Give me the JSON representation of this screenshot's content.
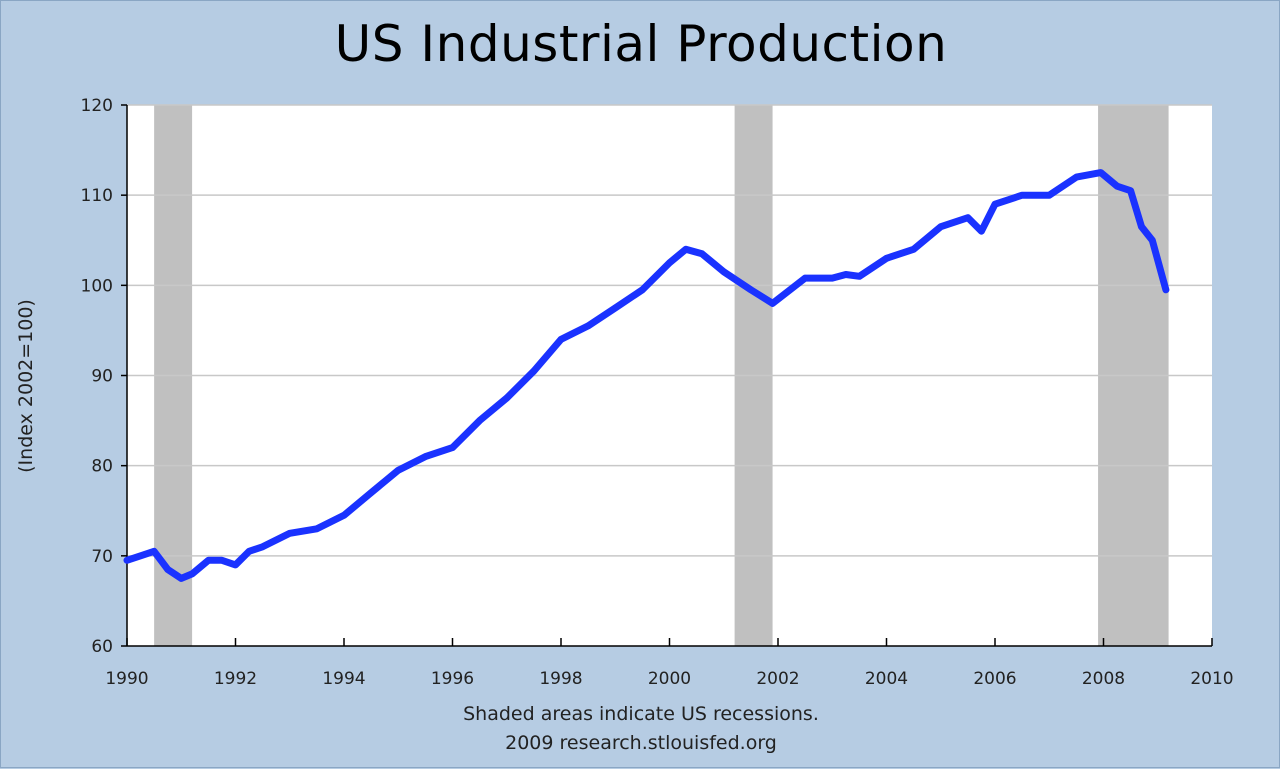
{
  "chart_data": {
    "type": "line",
    "title": "US Industrial Production",
    "ylabel": "(Index 2002=100)",
    "xlabel": "",
    "xlim": [
      1990,
      2010
    ],
    "ylim": [
      60,
      120
    ],
    "x_ticks": [
      "1990",
      "1992",
      "1994",
      "1996",
      "1998",
      "2000",
      "2002",
      "2004",
      "2006",
      "2008",
      "2010"
    ],
    "y_ticks": [
      "60",
      "70",
      "80",
      "90",
      "100",
      "110",
      "120"
    ],
    "grid": true,
    "line_color": "#1a32ff",
    "recession_color": "#c0c0c0",
    "recessions": [
      {
        "start": 1990.5,
        "end": 1991.2
      },
      {
        "start": 2001.2,
        "end": 2001.9
      },
      {
        "start": 2007.9,
        "end": 2009.2
      }
    ],
    "series": [
      {
        "x": [
          1990.0,
          1990.25,
          1990.5,
          1990.75,
          1991.0,
          1991.2,
          1991.5,
          1991.75,
          1992.0,
          1992.25,
          1992.5,
          1993.0,
          1993.5,
          1994.0,
          1994.5,
          1995.0,
          1995.5,
          1996.0,
          1996.5,
          1997.0,
          1997.5,
          1998.0,
          1998.5,
          1999.0,
          1999.5,
          2000.0,
          2000.3,
          2000.6,
          2001.0,
          2001.5,
          2001.9,
          2002.5,
          2003.0,
          2003.25,
          2003.5,
          2004.0,
          2004.5,
          2005.0,
          2005.5,
          2005.75,
          2006.0,
          2006.5,
          2007.0,
          2007.5,
          2007.95,
          2008.25,
          2008.5,
          2008.7,
          2008.9,
          2009.15
        ],
        "values": [
          69.5,
          70.0,
          70.5,
          68.5,
          67.5,
          68.0,
          69.5,
          69.5,
          69.0,
          70.5,
          71.0,
          72.5,
          73.0,
          74.5,
          77.0,
          79.5,
          81.0,
          82.0,
          85.0,
          87.5,
          90.5,
          94.0,
          95.5,
          97.5,
          99.5,
          102.5,
          104.0,
          103.5,
          101.5,
          99.5,
          98.0,
          100.8,
          100.8,
          101.2,
          101.0,
          103.0,
          104.0,
          106.5,
          107.5,
          106.0,
          109.0,
          110.0,
          110.0,
          112.0,
          112.5,
          111.0,
          110.5,
          106.5,
          105.0,
          99.5
        ]
      }
    ]
  },
  "footnote": {
    "line1": "Shaded areas indicate US recessions.",
    "line2": "2009 research.stlouisfed.org"
  }
}
